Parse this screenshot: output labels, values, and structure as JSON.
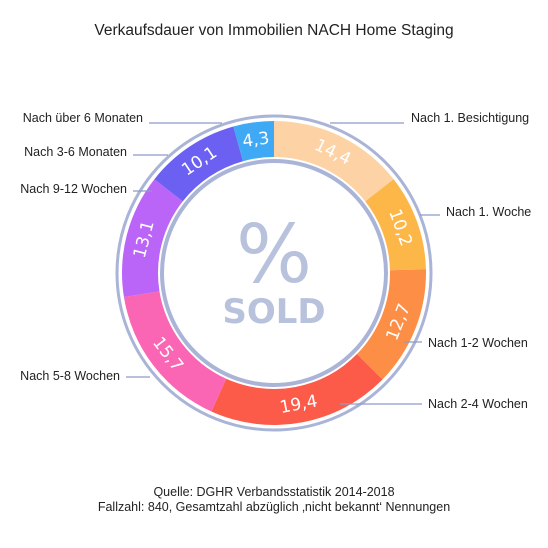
{
  "title": "Verkaufsdauer von Immobilien NACH Home Staging",
  "source_line1": "Quelle: DGHR Verbandsstatistik 2014-2018",
  "source_line2": "Fallzahl: 840, Gesamtzahl abzüglich ‚nicht bekannt‘ Nennungen",
  "center_symbol": "%",
  "center_text": "SOLD",
  "chart_data": {
    "type": "pie",
    "title": "Verkaufsdauer von Immobilien NACH Home Staging",
    "categories": [
      "Nach 1. Besichtigung",
      "Nach 1. Woche",
      "Nach 1-2 Wochen",
      "Nach 2-4 Wochen",
      "Nach 5-8 Wochen",
      "Nach 9-12 Wochen",
      "Nach 3-6 Monaten",
      "Nach über 6 Monaten"
    ],
    "values": [
      14.4,
      10.2,
      12.7,
      19.4,
      15.7,
      13.1,
      10.1,
      4.3
    ],
    "value_labels": [
      "14,4",
      "10,2",
      "12,7",
      "19,4",
      "15,7",
      "13,1",
      "10,1",
      "4,3"
    ],
    "colors": [
      "#fdd2a4",
      "#fdb748",
      "#fd8e45",
      "#fc5b4a",
      "#fa65b4",
      "#ba65f7",
      "#6c60f3",
      "#3fa9f5"
    ],
    "ring_color": "#aab4d6",
    "leader_color": "#8e9bc9",
    "style": "donut",
    "legend": "none"
  }
}
